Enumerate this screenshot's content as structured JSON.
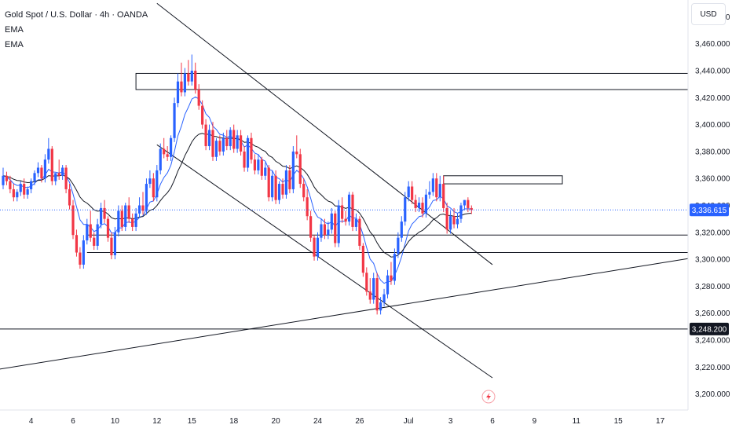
{
  "legend": {
    "title": "Gold Spot / U.S. Dollar · 4h · OANDA",
    "indicator_1": "EMA",
    "indicator_2": "EMA"
  },
  "currency_button": "USD",
  "colors": {
    "up": "#2962ff",
    "down": "#f23645",
    "ema_fast": "#2962ff",
    "ema_slow": "#131722",
    "lines": "#131722",
    "last_price_tag": "#2962ff",
    "level_tag": "#131722"
  },
  "icons": {
    "flash": "lightning-icon"
  },
  "chart_data": {
    "type": "candlestick",
    "symbol": "Gold Spot / U.S. Dollar",
    "interval": "4h",
    "source": "OANDA",
    "y_ticks": [
      3200,
      3220,
      3240,
      3260,
      3280,
      3300,
      3320,
      3340,
      3360,
      3380,
      3400,
      3420,
      3440,
      3460,
      3480
    ],
    "y_tick_labels": [
      "3,200.000",
      "3,220.000",
      "3,240.000",
      "3,260.000",
      "3,280.000",
      "3,300.000",
      "3,320.000",
      "3,340.000",
      "3,360.000",
      "3,380.000",
      "3,400.000",
      "3,420.000",
      "3,440.000",
      "3,460.000",
      "3,480.000"
    ],
    "x_tick_labels": [
      "4",
      "6",
      "10",
      "12",
      "15",
      "18",
      "20",
      "24",
      "26",
      "Jul",
      "3",
      "6",
      "9",
      "11",
      "15",
      "17"
    ],
    "x_tick_index": [
      8,
      20,
      32,
      44,
      54,
      66,
      78,
      90,
      102,
      116,
      128,
      140,
      152,
      164,
      176,
      188
    ],
    "last_price": 3336.615,
    "last_price_label": "3,336.615",
    "level_price": 3248.2,
    "level_label": "3,248.200",
    "candles": [
      {
        "o": 3355,
        "h": 3368,
        "c": 3362
      },
      {
        "o": 3362,
        "h": 3365,
        "c": 3358
      },
      {
        "o": 3358,
        "h": 3362,
        "c": 3352
      },
      {
        "o": 3352,
        "h": 3356,
        "c": 3346
      },
      {
        "o": 3346,
        "h": 3352,
        "c": 3350
      },
      {
        "o": 3350,
        "h": 3358,
        "c": 3356
      },
      {
        "o": 3356,
        "h": 3360,
        "c": 3348
      },
      {
        "o": 3348,
        "h": 3354,
        "c": 3352
      },
      {
        "o": 3352,
        "h": 3360,
        "c": 3358
      },
      {
        "o": 3358,
        "h": 3366,
        "c": 3364
      },
      {
        "o": 3364,
        "h": 3372,
        "c": 3368
      },
      {
        "o": 3368,
        "h": 3370,
        "c": 3360
      },
      {
        "o": 3360,
        "h": 3378,
        "c": 3374
      },
      {
        "o": 3374,
        "h": 3390,
        "c": 3382
      },
      {
        "o": 3382,
        "h": 3384,
        "c": 3358
      },
      {
        "o": 3358,
        "h": 3364,
        "c": 3364
      },
      {
        "o": 3364,
        "h": 3374,
        "c": 3362
      },
      {
        "o": 3362,
        "h": 3370,
        "c": 3368
      },
      {
        "o": 3368,
        "h": 3370,
        "c": 3352
      },
      {
        "o": 3352,
        "h": 3356,
        "c": 3340
      },
      {
        "o": 3340,
        "h": 3344,
        "c": 3318
      },
      {
        "o": 3318,
        "h": 3322,
        "c": 3305
      },
      {
        "o": 3305,
        "h": 3309,
        "c": 3296
      },
      {
        "o": 3296,
        "h": 3318,
        "c": 3314
      },
      {
        "o": 3314,
        "h": 3330,
        "c": 3326
      },
      {
        "o": 3326,
        "h": 3336,
        "c": 3316
      },
      {
        "o": 3316,
        "h": 3320,
        "c": 3310
      },
      {
        "o": 3310,
        "h": 3330,
        "c": 3326
      },
      {
        "o": 3326,
        "h": 3342,
        "c": 3338
      },
      {
        "o": 3338,
        "h": 3344,
        "c": 3330
      },
      {
        "o": 3330,
        "h": 3332,
        "c": 3316
      },
      {
        "o": 3316,
        "h": 3320,
        "c": 3303
      },
      {
        "o": 3303,
        "h": 3324,
        "c": 3320
      },
      {
        "o": 3320,
        "h": 3340,
        "c": 3336
      },
      {
        "o": 3336,
        "h": 3340,
        "c": 3324
      },
      {
        "o": 3324,
        "h": 3342,
        "c": 3340
      },
      {
        "o": 3340,
        "h": 3346,
        "c": 3330
      },
      {
        "o": 3330,
        "h": 3334,
        "c": 3324
      },
      {
        "o": 3324,
        "h": 3338,
        "c": 3334
      },
      {
        "o": 3334,
        "h": 3346,
        "c": 3340
      },
      {
        "o": 3340,
        "h": 3350,
        "c": 3336
      },
      {
        "o": 3336,
        "h": 3360,
        "c": 3356
      },
      {
        "o": 3356,
        "h": 3366,
        "c": 3360
      },
      {
        "o": 3360,
        "h": 3364,
        "c": 3346
      },
      {
        "o": 3346,
        "h": 3370,
        "c": 3366
      },
      {
        "o": 3366,
        "h": 3386,
        "c": 3382
      },
      {
        "o": 3382,
        "h": 3390,
        "c": 3378
      },
      {
        "o": 3378,
        "h": 3384,
        "c": 3376
      },
      {
        "o": 3376,
        "h": 3392,
        "c": 3390
      },
      {
        "o": 3390,
        "h": 3420,
        "c": 3416
      },
      {
        "o": 3416,
        "h": 3438,
        "c": 3432
      },
      {
        "o": 3432,
        "h": 3446,
        "c": 3424
      },
      {
        "o": 3424,
        "h": 3442,
        "c": 3438
      },
      {
        "o": 3438,
        "h": 3448,
        "c": 3432
      },
      {
        "o": 3432,
        "h": 3452,
        "c": 3440
      },
      {
        "o": 3440,
        "h": 3446,
        "c": 3426
      },
      {
        "o": 3426,
        "h": 3430,
        "c": 3414
      },
      {
        "o": 3414,
        "h": 3418,
        "c": 3400
      },
      {
        "o": 3400,
        "h": 3404,
        "c": 3384
      },
      {
        "o": 3384,
        "h": 3400,
        "c": 3396
      },
      {
        "o": 3396,
        "h": 3402,
        "c": 3376
      },
      {
        "o": 3376,
        "h": 3390,
        "c": 3388
      },
      {
        "o": 3388,
        "h": 3392,
        "c": 3380
      },
      {
        "o": 3380,
        "h": 3394,
        "c": 3390
      },
      {
        "o": 3390,
        "h": 3396,
        "c": 3384
      },
      {
        "o": 3384,
        "h": 3398,
        "c": 3396
      },
      {
        "o": 3396,
        "h": 3400,
        "c": 3382
      },
      {
        "o": 3382,
        "h": 3396,
        "c": 3392
      },
      {
        "o": 3392,
        "h": 3396,
        "c": 3380
      },
      {
        "o": 3380,
        "h": 3384,
        "c": 3368
      },
      {
        "o": 3368,
        "h": 3392,
        "c": 3390
      },
      {
        "o": 3390,
        "h": 3394,
        "c": 3374
      },
      {
        "o": 3374,
        "h": 3378,
        "c": 3366
      },
      {
        "o": 3366,
        "h": 3378,
        "c": 3374
      },
      {
        "o": 3374,
        "h": 3376,
        "c": 3362
      },
      {
        "o": 3362,
        "h": 3372,
        "c": 3368
      },
      {
        "o": 3368,
        "h": 3370,
        "c": 3346
      },
      {
        "o": 3346,
        "h": 3366,
        "c": 3362
      },
      {
        "o": 3362,
        "h": 3366,
        "c": 3344
      },
      {
        "o": 3344,
        "h": 3358,
        "c": 3356
      },
      {
        "o": 3356,
        "h": 3360,
        "c": 3348
      },
      {
        "o": 3348,
        "h": 3370,
        "c": 3366
      },
      {
        "o": 3366,
        "h": 3370,
        "c": 3352
      },
      {
        "o": 3352,
        "h": 3384,
        "c": 3380
      },
      {
        "o": 3380,
        "h": 3392,
        "c": 3378
      },
      {
        "o": 3378,
        "h": 3382,
        "c": 3356
      },
      {
        "o": 3356,
        "h": 3360,
        "c": 3346
      },
      {
        "o": 3346,
        "h": 3352,
        "c": 3332
      },
      {
        "o": 3332,
        "h": 3336,
        "c": 3316
      },
      {
        "o": 3316,
        "h": 3318,
        "c": 3302
      },
      {
        "o": 3302,
        "h": 3320,
        "c": 3316
      },
      {
        "o": 3316,
        "h": 3330,
        "c": 3326
      },
      {
        "o": 3326,
        "h": 3330,
        "c": 3318
      },
      {
        "o": 3318,
        "h": 3328,
        "c": 3322
      },
      {
        "o": 3322,
        "h": 3338,
        "c": 3334
      },
      {
        "o": 3334,
        "h": 3336,
        "c": 3312
      },
      {
        "o": 3312,
        "h": 3344,
        "c": 3340
      },
      {
        "o": 3340,
        "h": 3346,
        "c": 3330
      },
      {
        "o": 3330,
        "h": 3336,
        "c": 3328
      },
      {
        "o": 3328,
        "h": 3350,
        "c": 3348
      },
      {
        "o": 3348,
        "h": 3350,
        "c": 3324
      },
      {
        "o": 3324,
        "h": 3334,
        "c": 3330
      },
      {
        "o": 3330,
        "h": 3332,
        "c": 3310
      },
      {
        "o": 3310,
        "h": 3312,
        "c": 3290
      },
      {
        "o": 3290,
        "h": 3294,
        "c": 3276
      },
      {
        "o": 3276,
        "h": 3286,
        "c": 3270
      },
      {
        "o": 3270,
        "h": 3290,
        "c": 3286
      },
      {
        "o": 3286,
        "h": 3290,
        "c": 3262
      },
      {
        "o": 3262,
        "h": 3272,
        "c": 3268
      },
      {
        "o": 3268,
        "h": 3278,
        "c": 3274
      },
      {
        "o": 3274,
        "h": 3292,
        "c": 3288
      },
      {
        "o": 3288,
        "h": 3298,
        "c": 3284
      },
      {
        "o": 3284,
        "h": 3308,
        "c": 3304
      },
      {
        "o": 3304,
        "h": 3320,
        "c": 3316
      },
      {
        "o": 3316,
        "h": 3332,
        "c": 3328
      },
      {
        "o": 3328,
        "h": 3350,
        "c": 3346
      },
      {
        "o": 3346,
        "h": 3358,
        "c": 3354
      },
      {
        "o": 3354,
        "h": 3358,
        "c": 3344
      },
      {
        "o": 3344,
        "h": 3348,
        "c": 3338
      },
      {
        "o": 3338,
        "h": 3346,
        "c": 3342
      },
      {
        "o": 3342,
        "h": 3346,
        "c": 3334
      },
      {
        "o": 3334,
        "h": 3352,
        "c": 3348
      },
      {
        "o": 3348,
        "h": 3358,
        "c": 3350
      },
      {
        "o": 3350,
        "h": 3364,
        "c": 3360
      },
      {
        "o": 3360,
        "h": 3364,
        "c": 3346
      },
      {
        "o": 3346,
        "h": 3362,
        "c": 3356
      },
      {
        "o": 3356,
        "h": 3362,
        "c": 3338
      },
      {
        "o": 3338,
        "h": 3342,
        "c": 3322
      },
      {
        "o": 3322,
        "h": 3336,
        "c": 3332
      },
      {
        "o": 3332,
        "h": 3338,
        "c": 3326
      },
      {
        "o": 3326,
        "h": 3334,
        "c": 3330
      },
      {
        "o": 3330,
        "h": 3342,
        "c": 3340
      },
      {
        "o": 3340,
        "h": 3344,
        "c": 3344
      },
      {
        "o": 3344,
        "h": 3346,
        "c": 3338
      },
      {
        "o": 3338,
        "h": 3340,
        "c": 3336.6
      }
    ]
  },
  "drawings": {
    "boxes": [
      {
        "i0": 38,
        "i1": 999,
        "p_top": 3438,
        "p_bot": 3426
      },
      {
        "i0": 126,
        "i1": 160,
        "p_top": 3362,
        "p_bot": 3356
      }
    ],
    "hlines": [
      {
        "i0": 24,
        "i1": 999,
        "p": 3318
      },
      {
        "i0": 24,
        "i1": 999,
        "p": 3305
      },
      {
        "i0": -2,
        "i1": 999,
        "p": 3248.2
      }
    ],
    "trendlines": [
      {
        "i0": 44,
        "p0": 3490,
        "i1": 140,
        "p1": 3296
      },
      {
        "i0": 44,
        "p0": 3385,
        "i1": 140,
        "p1": 3212
      },
      {
        "i0": -2,
        "p0": 3218,
        "i1": 214,
        "p1": 3308
      }
    ]
  }
}
